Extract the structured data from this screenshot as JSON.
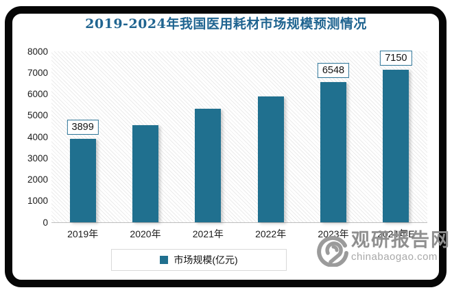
{
  "title": {
    "text": "2019-2024年我国医用耗材市场规模预测情况"
  },
  "colors": {
    "bar": "#20708F",
    "title": "#1F6490",
    "watermark": "#8f8f8f",
    "label_box_border": "#2a7396",
    "axis_line": "#bdbdbd"
  },
  "chart_data": {
    "type": "bar",
    "title": "2019-2024年我国医用耗材市场规模预测情况",
    "categories": [
      "2019年",
      "2020年",
      "2021年",
      "2022年",
      "2023年",
      "2024年E"
    ],
    "values": [
      3899,
      4550,
      5300,
      5900,
      6548,
      7150
    ],
    "data_labels": [
      "3899",
      "",
      "",
      "",
      "6548",
      "7150"
    ],
    "xlabel": "",
    "ylabel": "",
    "ylim": [
      0,
      8000
    ],
    "yticks": [
      0,
      1000,
      2000,
      3000,
      4000,
      5000,
      6000,
      7000,
      8000
    ],
    "grid": false,
    "plot_background": "diagonal-hatch",
    "legend": {
      "label": "市场规模(亿元)",
      "position": "bottom"
    }
  },
  "watermark": {
    "name": "观研报告网",
    "domain": "chinabaogao.com",
    "logo": "swirl-logo"
  }
}
